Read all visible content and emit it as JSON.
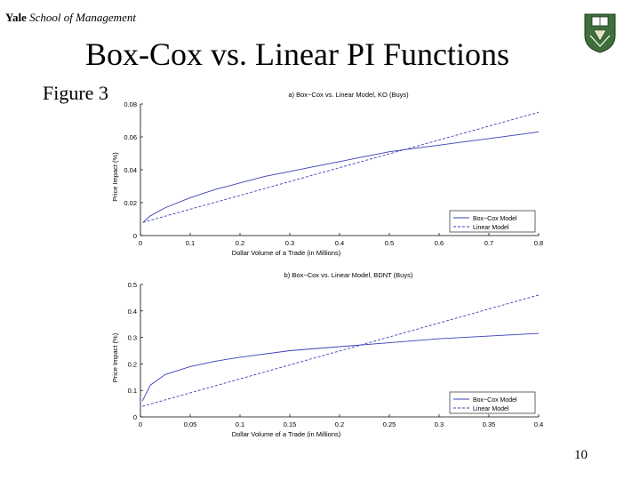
{
  "header": {
    "org_bold": "Yale",
    "org_rest": "School of Management"
  },
  "slide_title": "Box-Cox vs. Linear PI Functions",
  "figure_label": "Figure 3",
  "page_number": "10",
  "colors": {
    "series": "#3a40b8",
    "axis": "#000000"
  },
  "chart_data": [
    {
      "type": "line",
      "title": "a) Box−Cox vs. Linear Model, KO (Buys)",
      "xlabel": "Dollar Volume of a Trade (in Millions)",
      "ylabel": "Price Impact (%)",
      "xlim": [
        0,
        0.8
      ],
      "ylim": [
        0,
        0.08
      ],
      "xticks": [
        0,
        0.1,
        0.2,
        0.3,
        0.4,
        0.5,
        0.6,
        0.7,
        0.8
      ],
      "xtick_labels": [
        "0",
        "0.1",
        "0.2",
        "0.3",
        "0.4",
        "0.5",
        "0.6",
        "0.7",
        "0.8"
      ],
      "yticks": [
        0,
        0.02,
        0.04,
        0.06,
        0.08
      ],
      "ytick_labels": [
        "0",
        "0.02",
        "0.04",
        "0.06",
        "0.08"
      ],
      "legend_position": "lower-right",
      "series": [
        {
          "name": "Box−Cox Model",
          "style": "solid",
          "x": [
            0.005,
            0.02,
            0.05,
            0.1,
            0.15,
            0.2,
            0.25,
            0.3,
            0.35,
            0.4,
            0.45,
            0.5,
            0.55,
            0.6,
            0.65,
            0.7,
            0.75,
            0.8
          ],
          "y": [
            0.008,
            0.012,
            0.017,
            0.023,
            0.028,
            0.032,
            0.036,
            0.039,
            0.042,
            0.045,
            0.048,
            0.051,
            0.053,
            0.055,
            0.057,
            0.059,
            0.061,
            0.063
          ]
        },
        {
          "name": "Linear Model",
          "style": "dashed",
          "x": [
            0.005,
            0.8
          ],
          "y": [
            0.008,
            0.075
          ]
        }
      ]
    },
    {
      "type": "line",
      "title": "b) Box−Cox vs. Linear Model, BDNT (Buys)",
      "xlabel": "Dollar Volume of a Trade (in Millions)",
      "ylabel": "Price Impact (%)",
      "xlim": [
        0,
        0.4
      ],
      "ylim": [
        0,
        0.5
      ],
      "xticks": [
        0,
        0.05,
        0.1,
        0.15,
        0.2,
        0.25,
        0.3,
        0.35,
        0.4
      ],
      "xtick_labels": [
        "0",
        "0.05",
        "0.1",
        "0.15",
        "0.2",
        "0.25",
        "0.3",
        "0.35",
        "0.4"
      ],
      "yticks": [
        0,
        0.1,
        0.2,
        0.3,
        0.4,
        0.5
      ],
      "ytick_labels": [
        "0",
        "0.1",
        "0.2",
        "0.3",
        "0.4",
        "0.5"
      ],
      "legend_position": "lower-right",
      "series": [
        {
          "name": "Box−Cox Model",
          "style": "solid",
          "x": [
            0.002,
            0.01,
            0.025,
            0.05,
            0.075,
            0.1,
            0.15,
            0.2,
            0.25,
            0.3,
            0.35,
            0.4
          ],
          "y": [
            0.06,
            0.12,
            0.16,
            0.19,
            0.21,
            0.225,
            0.25,
            0.265,
            0.28,
            0.295,
            0.305,
            0.315
          ]
        },
        {
          "name": "Linear Model",
          "style": "dashed",
          "x": [
            0.002,
            0.4
          ],
          "y": [
            0.04,
            0.46
          ]
        }
      ]
    }
  ]
}
